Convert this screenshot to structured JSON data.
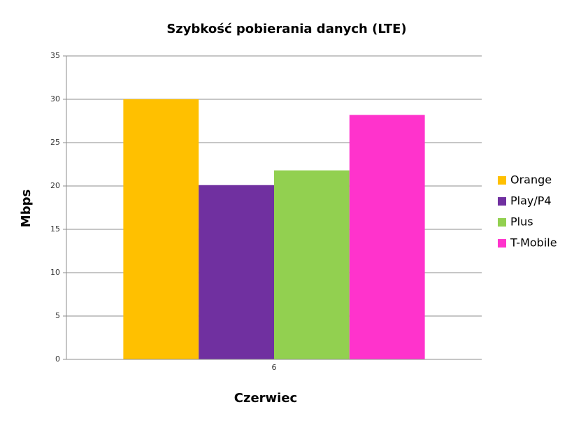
{
  "chart_data": {
    "type": "bar",
    "title": "Szybkość pobierania danych (LTE)",
    "xlabel": "Czerwiec",
    "ylabel": "Mbps",
    "categories": [
      "6"
    ],
    "series": [
      {
        "name": "Orange",
        "color": "#FFC000",
        "values": [
          30.0
        ]
      },
      {
        "name": "Play/P4",
        "color": "#7030A0",
        "values": [
          20.1
        ]
      },
      {
        "name": "Plus",
        "color": "#92D050",
        "values": [
          21.8
        ]
      },
      {
        "name": "T-Mobile",
        "color": "#FF33CC",
        "values": [
          28.2
        ]
      }
    ],
    "ylim": [
      0,
      35
    ],
    "yticks": [
      0,
      5,
      10,
      15,
      20,
      25,
      30,
      35
    ],
    "grid": true,
    "legend": "right"
  }
}
